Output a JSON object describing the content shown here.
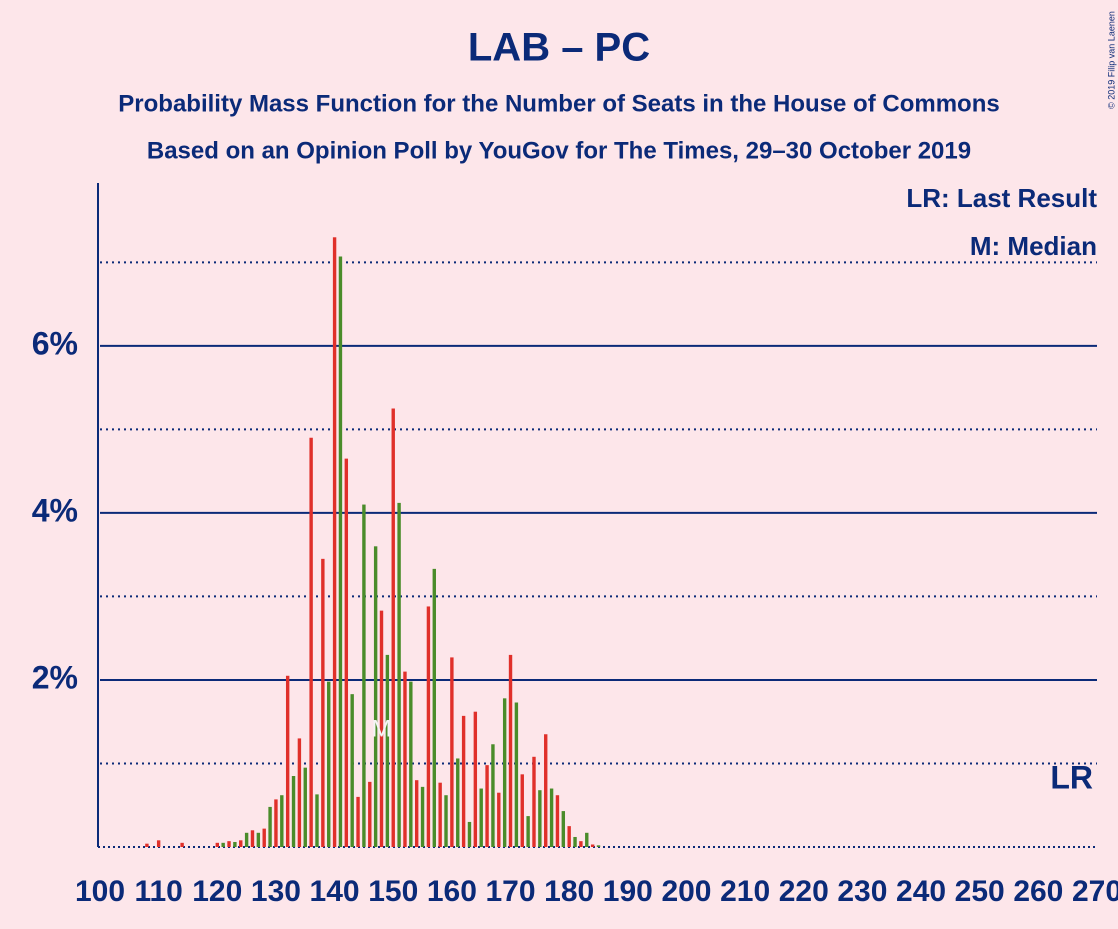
{
  "chart_data": {
    "type": "bar",
    "title": "LAB – PC",
    "subtitle": "Probability Mass Function for the Number of Seats in the House of Commons",
    "subtitle2": "Based on an Opinion Poll by YouGov for The Times, 29–30 October 2019",
    "legend_notes": [
      "LR: Last Result",
      "M: Median"
    ],
    "copyright": "© 2019 Filip van Laenen",
    "colors": [
      "#e0302a",
      "#4a8c2a"
    ],
    "x": [
      108,
      110,
      114,
      120,
      121,
      122,
      123,
      124,
      125,
      126,
      127,
      128,
      129,
      130,
      131,
      132,
      133,
      134,
      135,
      136,
      137,
      138,
      139,
      140,
      141,
      142,
      143,
      144,
      145,
      146,
      147,
      148,
      149,
      150,
      151,
      152,
      153,
      154,
      155,
      156,
      157,
      158,
      159,
      160,
      161,
      162,
      163,
      164,
      165,
      166,
      167,
      168,
      169,
      170,
      171,
      172,
      173,
      174,
      175,
      176,
      177,
      178,
      179,
      180,
      181,
      182,
      183,
      184,
      185
    ],
    "values": [
      0.04,
      0.08,
      0.05,
      0.05,
      0.05,
      0.07,
      0.06,
      0.08,
      0.17,
      0.2,
      0.17,
      0.22,
      0.48,
      0.57,
      0.62,
      2.05,
      0.85,
      1.3,
      0.95,
      4.9,
      0.63,
      3.45,
      1.98,
      7.3,
      7.07,
      4.65,
      1.83,
      0.6,
      4.1,
      0.78,
      3.6,
      2.83,
      2.3,
      5.25,
      4.12,
      2.1,
      1.98,
      0.8,
      0.72,
      2.88,
      3.33,
      0.77,
      0.62,
      2.27,
      1.06,
      1.57,
      0.3,
      1.62,
      0.7,
      0.98,
      1.23,
      0.65,
      1.78,
      2.3,
      1.73,
      0.87,
      0.37,
      1.08,
      0.68,
      1.35,
      0.7,
      0.62,
      0.43,
      0.25,
      0.12,
      0.07,
      0.17,
      0.03,
      0.02
    ],
    "xlim": [
      100,
      270
    ],
    "xticks": [
      100,
      110,
      120,
      130,
      140,
      150,
      160,
      170,
      180,
      190,
      200,
      210,
      220,
      230,
      240,
      250,
      260,
      270
    ],
    "ylim": [
      0,
      7.95
    ],
    "yticks": [
      {
        "value": 2,
        "label": "2%"
      },
      {
        "value": 4,
        "label": "4%"
      },
      {
        "value": 6,
        "label": "6%"
      }
    ],
    "minor_yticks": [
      1,
      3,
      5,
      7
    ],
    "annotations": [
      {
        "text": "M",
        "x": 148,
        "y": 1.4
      },
      {
        "text": "LR",
        "x": 270,
        "y": 0.8
      }
    ]
  }
}
